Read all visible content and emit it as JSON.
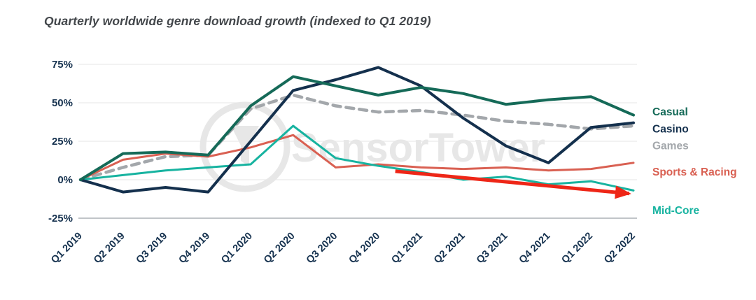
{
  "chart_data": {
    "type": "line",
    "title": "Quarterly worldwide genre download growth (indexed to Q1 2019)",
    "watermark": "SensorTower",
    "categories": [
      "Q1 2019",
      "Q2 2019",
      "Q3 2019",
      "Q4 2019",
      "Q1 2020",
      "Q2 2020",
      "Q3 2020",
      "Q4 2020",
      "Q1 2021",
      "Q2 2021",
      "Q3 2021",
      "Q4 2021",
      "Q1 2022",
      "Q2 2022"
    ],
    "xlabel": "",
    "ylabel": "",
    "ylim": [
      -25,
      80
    ],
    "grid": true,
    "legend_position": "right",
    "y_ticks": [
      {
        "value": 75,
        "label": "75%",
        "strong": false
      },
      {
        "value": 50,
        "label": "50%",
        "strong": false
      },
      {
        "value": 25,
        "label": "25%",
        "strong": false
      },
      {
        "value": 0,
        "label": "0%",
        "strong": false
      },
      {
        "value": -25,
        "label": "-25%",
        "strong": true
      }
    ],
    "series": [
      {
        "name": "Casual",
        "color": "#156a58",
        "style": "solid",
        "width": 4,
        "label_value": 44,
        "values": [
          0,
          17,
          18,
          16,
          48,
          67,
          61,
          55,
          60,
          56,
          49,
          52,
          54,
          42
        ]
      },
      {
        "name": "Casino",
        "color": "#14304d",
        "style": "solid",
        "width": 4,
        "label_value": 33,
        "values": [
          0,
          -8,
          -5,
          -8,
          25,
          58,
          65,
          73,
          61,
          40,
          22,
          11,
          34,
          37
        ]
      },
      {
        "name": "Games",
        "color": "#a3a7ab",
        "style": "dashed",
        "width": 4.5,
        "label_value": 22,
        "values": [
          0,
          8,
          15,
          16,
          46,
          55,
          48,
          44,
          45,
          42,
          38,
          36,
          33,
          35
        ]
      },
      {
        "name": "Sports & Racing",
        "color": "#d96052",
        "style": "solid",
        "width": 3,
        "label_value": 5,
        "values": [
          0,
          13,
          17,
          15,
          21,
          29,
          8,
          10,
          8,
          7,
          8,
          6,
          7,
          11
        ]
      },
      {
        "name": "Mid-Core",
        "color": "#17b3a0",
        "style": "solid",
        "width": 3,
        "label_value": -20,
        "values": [
          0,
          3,
          6,
          8,
          10,
          35,
          14,
          9,
          5,
          0,
          2,
          -3,
          -1,
          -7
        ]
      }
    ],
    "annotation_arrow": {
      "start": {
        "index": 7.4,
        "value": 5.5
      },
      "end": {
        "index": 12.9,
        "value": -9
      },
      "color": "#ee2617"
    }
  }
}
